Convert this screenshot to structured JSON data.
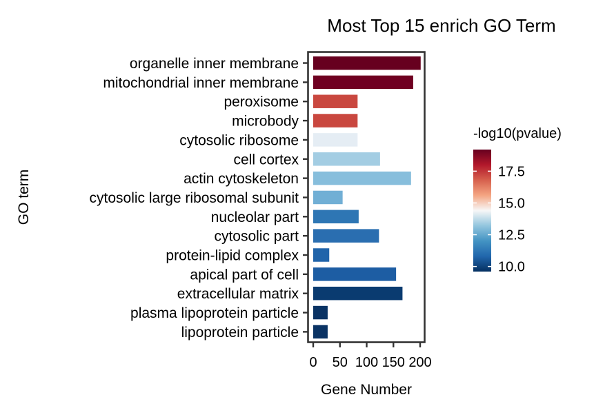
{
  "chart_data": {
    "type": "bar",
    "orientation": "horizontal",
    "title": "Most Top 15 enrich GO Term",
    "xlabel": "Gene Number",
    "ylabel": "GO term",
    "xlim": [
      0,
      205
    ],
    "xticks": [
      0,
      50,
      100,
      150,
      200
    ],
    "grid": false,
    "legend_position": "right",
    "categories": [
      "organelle inner membrane",
      "mitochondrial inner membrane",
      "peroxisome",
      "microbody",
      "cytosolic ribosome",
      "cell cortex",
      "actin cytoskeleton",
      "cytosolic large ribosomal subunit",
      "nucleolar part",
      "cytosolic part",
      "protein-lipid complex",
      "apical part of cell",
      "extracellular matrix",
      "plasma lipoprotein particle",
      "lipoprotein particle"
    ],
    "values": [
      201,
      187,
      83,
      83,
      83,
      125,
      183,
      55,
      85,
      123,
      30,
      155,
      167,
      27,
      27
    ],
    "color_values": [
      19.2,
      19.0,
      17.2,
      17.2,
      13.3,
      12.8,
      12.6,
      12.2,
      11.4,
      11.2,
      10.9,
      10.7,
      9.9,
      9.6,
      9.6
    ],
    "colors": [
      "#67001f",
      "#6f0021",
      "#c9473f",
      "#c9473f",
      "#e5edf4",
      "#a3cde3",
      "#87bedc",
      "#71afd5",
      "#2e76b4",
      "#2a6eb0",
      "#2064aa",
      "#1d5da3",
      "#0a3b70",
      "#0a3364",
      "#0a3364"
    ],
    "colorbar": {
      "title": "-log10(pvalue)",
      "ticks": [
        "10.0",
        "12.5",
        "15.0",
        "17.5"
      ],
      "tick_values": [
        10.0,
        12.5,
        15.0,
        17.5
      ],
      "range": [
        9.6,
        19.2
      ],
      "gradient": [
        "#053061",
        "#2166ac",
        "#4393c3",
        "#92c5de",
        "#f7f7f7",
        "#f4a582",
        "#d6604d",
        "#b2182b",
        "#67001f"
      ]
    }
  }
}
